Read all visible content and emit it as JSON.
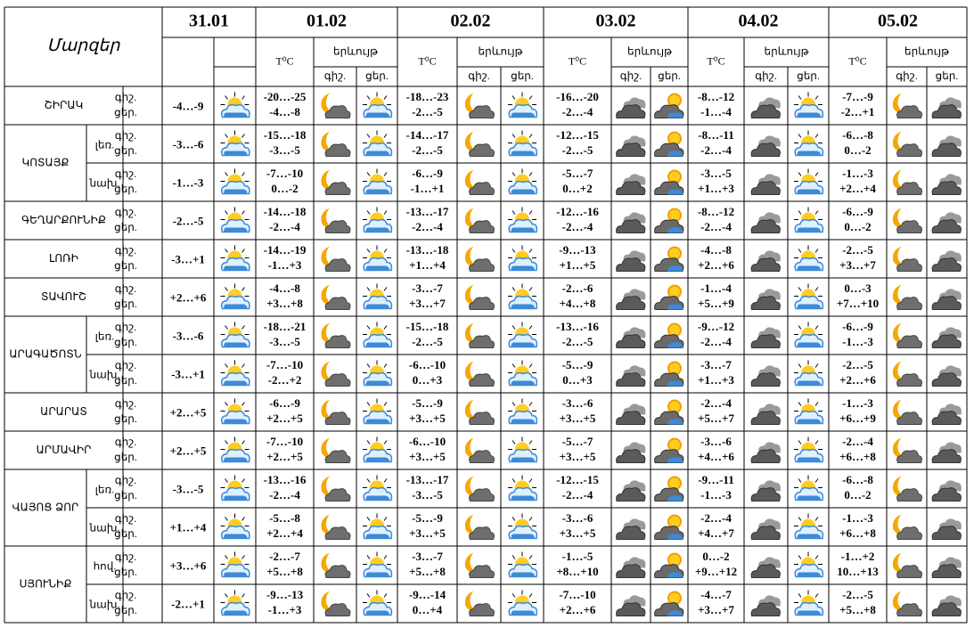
{
  "header": {
    "title": "Մարզեր",
    "dates": [
      "31.01",
      "01.02",
      "02.02",
      "03.02",
      "04.02",
      "05.02"
    ],
    "temp_label": "T⁰C",
    "phenomenon_label": "երևույթ",
    "night_label": "գիշ.",
    "day_label": "ցեր."
  },
  "regions": [
    {
      "name": "ՇԻՐԱԿ",
      "zones": [
        {
          "periods": [
            "գիշ.",
            "ցեր."
          ],
          "t_3101": "-4…-9",
          "temps": [
            [
              "-20…-25",
              "-4…-8"
            ],
            [
              "-18…-23",
              "-2…-5"
            ],
            [
              "-16…-20",
              "-2…-4"
            ],
            [
              "-8…-12",
              "-1…-4"
            ],
            [
              "-7…-9",
              "-2…+1"
            ]
          ]
        }
      ]
    },
    {
      "name": "ԿՈՏԱՅՔ",
      "zones": [
        {
          "zone": "լեռ.",
          "periods": [
            "գիշ.",
            "ցեր."
          ],
          "t_3101": "-3…-6",
          "temps": [
            [
              "-15…-18",
              "-3…-5"
            ],
            [
              "-14…-17",
              "-2…-5"
            ],
            [
              "-12…-15",
              "-2…-5"
            ],
            [
              "-8…-11",
              "-2…-4"
            ],
            [
              "-6…-8",
              "0…-2"
            ]
          ]
        },
        {
          "zone": "նախ.",
          "periods": [
            "գիշ.",
            "ցեր."
          ],
          "t_3101": "-1…-3",
          "temps": [
            [
              "-7…-10",
              "0…-2"
            ],
            [
              "-6…-9",
              "-1…+1"
            ],
            [
              "-5…-7",
              "0…+2"
            ],
            [
              "-3…-5",
              "+1…+3"
            ],
            [
              "-1…-3",
              "+2…+4"
            ]
          ]
        }
      ]
    },
    {
      "name": "ԳԵՂԱՐՔՈՒՆԻՔ",
      "zones": [
        {
          "periods": [
            "գիշ.",
            "ցեր."
          ],
          "t_3101": "-2…-5",
          "temps": [
            [
              "-14…-18",
              "-2…-4"
            ],
            [
              "-13…-17",
              "-2…-4"
            ],
            [
              "-12…-16",
              "-2…-4"
            ],
            [
              "-8…-12",
              "-2…-4"
            ],
            [
              "-6…-9",
              "0…-2"
            ]
          ]
        }
      ]
    },
    {
      "name": "ԼՈՌԻ",
      "zones": [
        {
          "periods": [
            "գիշ.",
            "ցեր."
          ],
          "t_3101": "-3…+1",
          "temps": [
            [
              "-14…-19",
              "-1…+3"
            ],
            [
              "-13…-18",
              "+1…+4"
            ],
            [
              "-9…-13",
              "+1…+5"
            ],
            [
              "-4…-8",
              "+2…+6"
            ],
            [
              "-2…-5",
              "+3…+7"
            ]
          ]
        }
      ]
    },
    {
      "name": "ՏԱՎՈՒՇ",
      "zones": [
        {
          "periods": [
            "գիշ.",
            "ցեր."
          ],
          "t_3101": "+2…+6",
          "temps": [
            [
              "-4…-8",
              "+3…+8"
            ],
            [
              "-3…-7",
              "+3…+7"
            ],
            [
              "-2…-6",
              "+4…+8"
            ],
            [
              "-1…-4",
              "+5…+9"
            ],
            [
              "0…-3",
              "+7…+10"
            ]
          ]
        }
      ]
    },
    {
      "name": "ԱՐԱԳԱԾՈՏՆ",
      "zones": [
        {
          "zone": "լեռ.",
          "periods": [
            "գիշ.",
            "ցեր."
          ],
          "t_3101": "-3…-6",
          "temps": [
            [
              "-18…-21",
              "-3…-5"
            ],
            [
              "-15…-18",
              "-2…-5"
            ],
            [
              "-13…-16",
              "-2…-5"
            ],
            [
              "-9…-12",
              "-2…-4"
            ],
            [
              "-6…-9",
              "-1…-3"
            ]
          ]
        },
        {
          "zone": "նախ.",
          "periods": [
            "գիշ.",
            "ցեր."
          ],
          "t_3101": "-3…+1",
          "temps": [
            [
              "-7…-10",
              "-2…+2"
            ],
            [
              "-6…-10",
              "0…+3"
            ],
            [
              "-5…-9",
              "0…+3"
            ],
            [
              "-3…-7",
              "+1…+3"
            ],
            [
              "-2…-5",
              "+2…+6"
            ]
          ]
        }
      ]
    },
    {
      "name": "ԱՐԱՐԱՏ",
      "zones": [
        {
          "periods": [
            "գիշ.",
            "ցեր."
          ],
          "t_3101": "+2…+5",
          "temps": [
            [
              "-6…-9",
              "+2…+5"
            ],
            [
              "-5…-9",
              "+3…+5"
            ],
            [
              "-3…-6",
              "+3…+5"
            ],
            [
              "-2…-4",
              "+5…+7"
            ],
            [
              "-1…-3",
              "+6…+9"
            ]
          ]
        }
      ]
    },
    {
      "name": "ԱՐՄԱՎԻՐ",
      "zones": [
        {
          "periods": [
            "գիշ.",
            "ցեր."
          ],
          "t_3101": "+2…+5",
          "temps": [
            [
              "-7…-10",
              "+2…+5"
            ],
            [
              "-6…-10",
              "+3…+5"
            ],
            [
              "-5…-7",
              "+3…+5"
            ],
            [
              "-3…-6",
              "+4…+6"
            ],
            [
              "-2…-4",
              "+6…+8"
            ]
          ]
        }
      ]
    },
    {
      "name": "ՎԱՅՈՑ ՁՈՐ",
      "zones": [
        {
          "zone": "լեռ.",
          "periods": [
            "գիշ.",
            "ցեր."
          ],
          "t_3101": "-3…-5",
          "temps": [
            [
              "-13…-16",
              "-2…-4"
            ],
            [
              "-13…-17",
              "-3…-5"
            ],
            [
              "-12…-15",
              "-2…-4"
            ],
            [
              "-9…-11",
              "-1…-3"
            ],
            [
              "-6…-8",
              "0…-2"
            ]
          ]
        },
        {
          "zone": "նախ.",
          "periods": [
            "գիշ.",
            "ցեր."
          ],
          "t_3101": "+1…+4",
          "temps": [
            [
              "-5…-8",
              "+2…+4"
            ],
            [
              "-5…-9",
              "+3…+5"
            ],
            [
              "-3…-6",
              "+3…+5"
            ],
            [
              "-2…-4",
              "+4…+7"
            ],
            [
              "-1…-3",
              "+6…+8"
            ]
          ]
        }
      ]
    },
    {
      "name": "ՍՅՈՒՆԻՔ",
      "zones": [
        {
          "zone": "հով.",
          "periods": [
            "գիշ.",
            "ցեր."
          ],
          "t_3101": "+3…+6",
          "temps": [
            [
              "-2…-7",
              "+5…+8"
            ],
            [
              "-3…-7",
              "+5…+8"
            ],
            [
              "-1…-5",
              "+8…+10"
            ],
            [
              "0…-2",
              "+9…+12"
            ],
            [
              "-1…+2",
              "10…+13"
            ]
          ]
        },
        {
          "zone": "նախ.",
          "periods": [
            "գիշ.",
            "ցեր."
          ],
          "t_3101": "-2…+1",
          "temps": [
            [
              "-9…-13",
              "-1…+3"
            ],
            [
              "-9…-14",
              "0…+4"
            ],
            [
              "-7…-10",
              "+2…+6"
            ],
            [
              "-4…-7",
              "+3…+7"
            ],
            [
              "-2…-5",
              "+5…+8"
            ]
          ]
        }
      ]
    }
  ]
}
